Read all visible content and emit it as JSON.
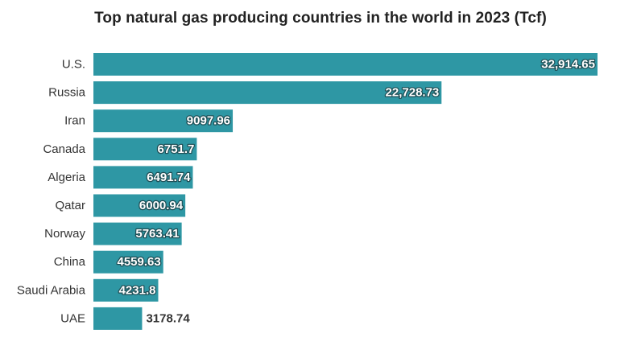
{
  "chart_data": {
    "type": "bar",
    "orientation": "horizontal",
    "title": "Top natural gas producing countries in the world in 2023 (Tcf)",
    "xlabel": "",
    "ylabel": "",
    "grid": false,
    "bar_color": "#2e97a4",
    "categories": [
      "U.S.",
      "Russia",
      "Iran",
      "Canada",
      "Algeria",
      "Qatar",
      "Norway",
      "China",
      "Saudi Arabia",
      "UAE"
    ],
    "values": [
      32914.65,
      22728.73,
      9097.96,
      6751.7,
      6491.74,
      6000.94,
      5763.41,
      4559.63,
      4231.8,
      3178.74
    ],
    "value_labels": [
      "32,914.65",
      "22,728.73",
      "9097.96",
      "6751.7",
      "6491.74",
      "6000.94",
      "5763.41",
      "4559.63",
      "4231.8",
      "3178.74"
    ]
  }
}
